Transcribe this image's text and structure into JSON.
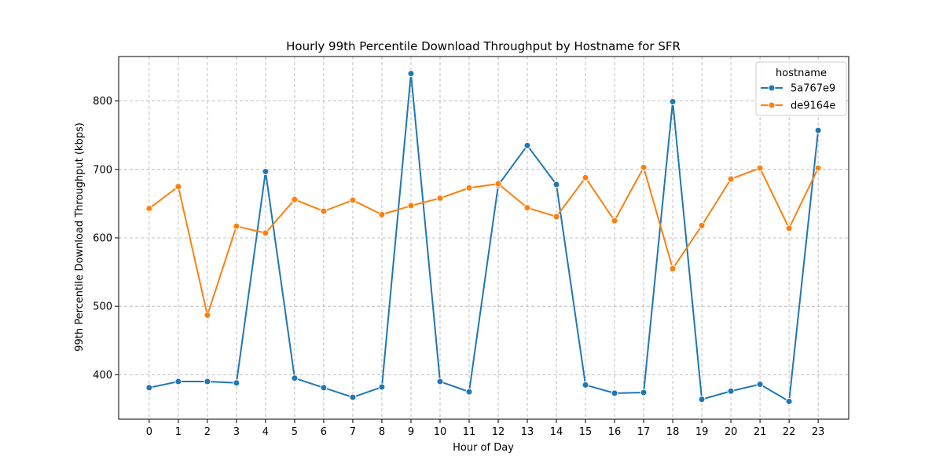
{
  "chart_data": {
    "type": "line",
    "title": "Hourly 99th Percentile Download Throughput by Hostname for SFR",
    "xlabel": "Hour of Day",
    "ylabel": "99th Percentile Download Throughput (kbps)",
    "x": [
      0,
      1,
      2,
      3,
      4,
      5,
      6,
      7,
      8,
      9,
      10,
      11,
      12,
      13,
      14,
      15,
      16,
      17,
      18,
      19,
      20,
      21,
      22,
      23
    ],
    "xlim": [
      -1.05,
      24.05
    ],
    "ylim": [
      335,
      865
    ],
    "yticks": [
      400,
      500,
      600,
      700,
      800
    ],
    "grid": true,
    "legend": {
      "title": "hostname",
      "placement": "top-right"
    },
    "series": [
      {
        "name": "5a767e9",
        "color": "#1f77b4",
        "values": [
          381,
          390,
          390,
          388,
          697,
          395,
          381,
          367,
          382,
          840,
          390,
          375,
          677,
          735,
          678,
          385,
          373,
          374,
          799,
          364,
          376,
          386,
          361,
          757
        ]
      },
      {
        "name": "de9164e",
        "color": "#ff7f0e",
        "values": [
          643,
          675,
          487,
          617,
          607,
          656,
          639,
          655,
          634,
          647,
          658,
          673,
          679,
          644,
          631,
          688,
          625,
          703,
          555,
          618,
          686,
          702,
          614,
          702
        ]
      }
    ]
  }
}
